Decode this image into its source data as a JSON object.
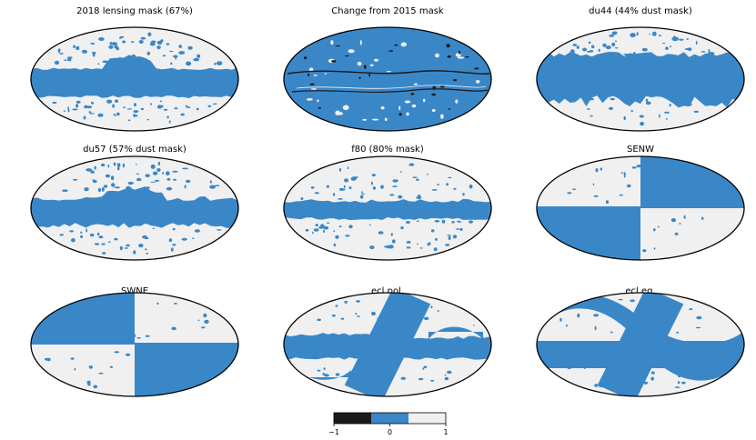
{
  "panels": [
    {
      "title": "2018 lensing mask (67%)",
      "variant": "lensing"
    },
    {
      "title": "Change from 2015 mask",
      "variant": "change"
    },
    {
      "title": "du44 (44% dust mask)",
      "variant": "du44"
    },
    {
      "title": "du57 (57% dust mask)",
      "variant": "du57"
    },
    {
      "title": "f80 (80% mask)",
      "variant": "f80"
    },
    {
      "title": "SENW",
      "variant": "senw"
    },
    {
      "title": "SWNE",
      "variant": "swne"
    },
    {
      "title": "ecl.pol.",
      "variant": "eclpol"
    },
    {
      "title": "ecl.eq.",
      "variant": "ecleq"
    }
  ],
  "colorbar": {
    "ticks": [
      "−1",
      "0",
      "1"
    ],
    "colors": {
      "minus_one": "#1a1a1a",
      "zero": "#3a87c8",
      "one": "#f0f0f0"
    }
  },
  "colors": {
    "masked": "#3a87c8",
    "unmasked": "#f0f0f0",
    "outline": "#000000"
  }
}
